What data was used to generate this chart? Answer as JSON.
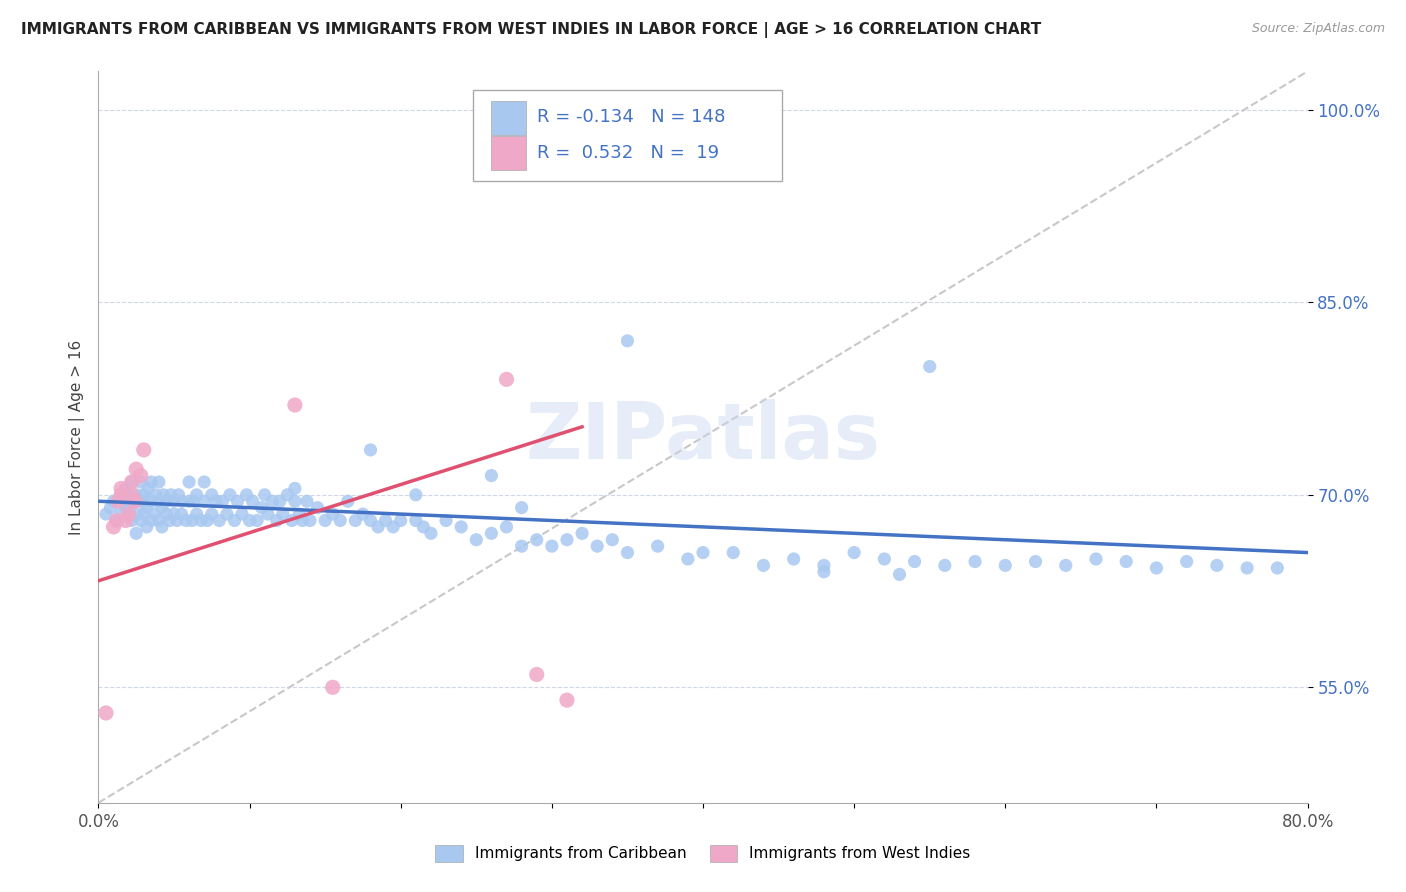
{
  "title": "IMMIGRANTS FROM CARIBBEAN VS IMMIGRANTS FROM WEST INDIES IN LABOR FORCE | AGE > 16 CORRELATION CHART",
  "source": "Source: ZipAtlas.com",
  "ylabel": "In Labor Force | Age > 16",
  "watermark": "ZIPatlas",
  "xmin": 0.0,
  "xmax": 0.8,
  "ymin": 0.46,
  "ymax": 1.03,
  "yticks": [
    0.55,
    0.7,
    0.85,
    1.0
  ],
  "ytick_labels": [
    "55.0%",
    "70.0%",
    "85.0%",
    "100.0%"
  ],
  "xticks": [
    0.0,
    0.1,
    0.2,
    0.3,
    0.4,
    0.5,
    0.6,
    0.7,
    0.8
  ],
  "caribbean_R": -0.134,
  "caribbean_N": 148,
  "westindies_R": 0.532,
  "westindies_N": 19,
  "caribbean_color": "#a8c8f0",
  "westindies_color": "#f0a8c8",
  "trendline_caribbean_color": "#4472c4",
  "trendline_westindies_color": "#e05070",
  "diagonal_color": "#c8c8c8",
  "background_color": "#ffffff",
  "legend_entry1": "Immigrants from Caribbean",
  "legend_entry2": "Immigrants from West Indies",
  "caribbean_x": [
    0.005,
    0.008,
    0.01,
    0.012,
    0.015,
    0.015,
    0.018,
    0.018,
    0.02,
    0.02,
    0.02,
    0.022,
    0.022,
    0.022,
    0.025,
    0.025,
    0.025,
    0.027,
    0.028,
    0.028,
    0.03,
    0.03,
    0.03,
    0.032,
    0.032,
    0.033,
    0.035,
    0.035,
    0.035,
    0.037,
    0.038,
    0.04,
    0.04,
    0.04,
    0.042,
    0.042,
    0.043,
    0.045,
    0.045,
    0.047,
    0.048,
    0.05,
    0.05,
    0.052,
    0.053,
    0.055,
    0.055,
    0.058,
    0.06,
    0.06,
    0.062,
    0.063,
    0.065,
    0.065,
    0.068,
    0.07,
    0.07,
    0.072,
    0.075,
    0.075,
    0.078,
    0.08,
    0.082,
    0.085,
    0.087,
    0.09,
    0.092,
    0.095,
    0.098,
    0.1,
    0.102,
    0.105,
    0.108,
    0.11,
    0.112,
    0.115,
    0.118,
    0.12,
    0.122,
    0.125,
    0.128,
    0.13,
    0.133,
    0.135,
    0.138,
    0.14,
    0.145,
    0.15,
    0.155,
    0.16,
    0.165,
    0.17,
    0.175,
    0.18,
    0.185,
    0.19,
    0.195,
    0.2,
    0.21,
    0.215,
    0.22,
    0.23,
    0.24,
    0.25,
    0.26,
    0.27,
    0.28,
    0.29,
    0.3,
    0.31,
    0.32,
    0.33,
    0.34,
    0.35,
    0.37,
    0.39,
    0.4,
    0.42,
    0.44,
    0.46,
    0.48,
    0.5,
    0.52,
    0.54,
    0.56,
    0.58,
    0.6,
    0.62,
    0.64,
    0.66,
    0.68,
    0.7,
    0.72,
    0.74,
    0.76,
    0.78,
    0.35,
    0.55,
    0.18,
    0.21,
    0.26,
    0.28,
    0.13,
    0.48,
    0.53
  ],
  "caribbean_y": [
    0.685,
    0.69,
    0.695,
    0.68,
    0.685,
    0.7,
    0.69,
    0.705,
    0.7,
    0.695,
    0.69,
    0.68,
    0.695,
    0.71,
    0.685,
    0.7,
    0.67,
    0.695,
    0.68,
    0.71,
    0.685,
    0.695,
    0.7,
    0.675,
    0.69,
    0.705,
    0.68,
    0.695,
    0.71,
    0.685,
    0.7,
    0.68,
    0.695,
    0.71,
    0.675,
    0.69,
    0.7,
    0.685,
    0.695,
    0.68,
    0.7,
    0.685,
    0.695,
    0.68,
    0.7,
    0.685,
    0.695,
    0.68,
    0.695,
    0.71,
    0.68,
    0.695,
    0.685,
    0.7,
    0.68,
    0.695,
    0.71,
    0.68,
    0.685,
    0.7,
    0.695,
    0.68,
    0.695,
    0.685,
    0.7,
    0.68,
    0.695,
    0.685,
    0.7,
    0.68,
    0.695,
    0.68,
    0.69,
    0.7,
    0.685,
    0.695,
    0.68,
    0.695,
    0.685,
    0.7,
    0.68,
    0.695,
    0.685,
    0.68,
    0.695,
    0.68,
    0.69,
    0.68,
    0.685,
    0.68,
    0.695,
    0.68,
    0.685,
    0.68,
    0.675,
    0.68,
    0.675,
    0.68,
    0.68,
    0.675,
    0.67,
    0.68,
    0.675,
    0.665,
    0.67,
    0.675,
    0.66,
    0.665,
    0.66,
    0.665,
    0.67,
    0.66,
    0.665,
    0.655,
    0.66,
    0.65,
    0.655,
    0.655,
    0.645,
    0.65,
    0.645,
    0.655,
    0.65,
    0.648,
    0.645,
    0.648,
    0.645,
    0.648,
    0.645,
    0.65,
    0.648,
    0.643,
    0.648,
    0.645,
    0.643,
    0.643,
    0.82,
    0.8,
    0.735,
    0.7,
    0.715,
    0.69,
    0.705,
    0.64,
    0.638
  ],
  "westindies_x": [
    0.005,
    0.01,
    0.012,
    0.013,
    0.015,
    0.015,
    0.018,
    0.02,
    0.022,
    0.022,
    0.024,
    0.025,
    0.028,
    0.03,
    0.13,
    0.155,
    0.27,
    0.29,
    0.31
  ],
  "westindies_y": [
    0.53,
    0.675,
    0.68,
    0.695,
    0.7,
    0.705,
    0.68,
    0.685,
    0.7,
    0.71,
    0.695,
    0.72,
    0.715,
    0.735,
    0.77,
    0.55,
    0.79,
    0.56,
    0.54
  ],
  "trendline_carib_x0": 0.0,
  "trendline_carib_x1": 0.8,
  "trendline_carib_y0": 0.695,
  "trendline_carib_y1": 0.655,
  "trendline_wi_x0": 0.0,
  "trendline_wi_x1": 0.32,
  "trendline_wi_y0": 0.633,
  "trendline_wi_y1": 0.753
}
